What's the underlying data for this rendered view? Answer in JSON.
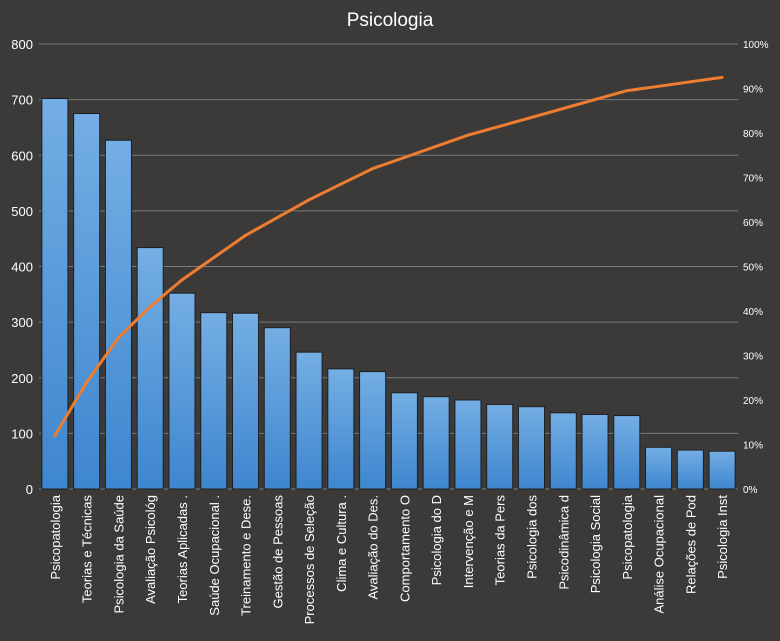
{
  "chart_data": {
    "type": "bar",
    "title": "Psicologia",
    "categories": [
      "Psicopatologia",
      "Teorias e Técnicas",
      "Psicologia da Saúde",
      "Avaliação Psicológ",
      "Teorias Aplicadas .",
      "Saúde Ocupacional  .",
      "Treinamento e Dese.",
      "Gestão de Pessoas",
      "Processos de Seleção",
      "Clima e Cultura  .",
      "Avaliação do Des.",
      "Comportamento  O",
      "Psicologia do D",
      "Intervenção  e M",
      "Teorias da Pers",
      "Psicologia dos",
      "Psicodinâmica d",
      "Psicologia Social",
      "Psicopatologia",
      "Análise Ocupacional",
      "Relações de Pod",
      "Psicologia Inst"
    ],
    "series": [
      {
        "type": "bar",
        "axis": "primary",
        "values": [
          702,
          675,
          627,
          434,
          352,
          317,
          316,
          290,
          246,
          216,
          211,
          173,
          166,
          160,
          152,
          148,
          137,
          134,
          132,
          75,
          70,
          68
        ]
      },
      {
        "type": "line",
        "axis": "secondary",
        "values": [
          12,
          24,
          34,
          41,
          47,
          52,
          57,
          61,
          65,
          68.5,
          72,
          74.5,
          77,
          79.5,
          81.5,
          83.5,
          85.5,
          87.5,
          89.5,
          90.5,
          91.5,
          92.5
        ]
      }
    ],
    "ylim": [
      0,
      800
    ],
    "yticks": [
      "0",
      "100",
      "200",
      "300",
      "400",
      "500",
      "600",
      "700",
      "800"
    ],
    "y2lim": [
      0,
      100
    ],
    "y2ticks": [
      "0%",
      "10%",
      "20%",
      "30%",
      "40%",
      "50%",
      "60%",
      "70%",
      "80%",
      "90%",
      "100%"
    ],
    "grid": true,
    "colors": {
      "bar": "#5b9bd5",
      "line": "#ed7d31",
      "background": "#3b3a39",
      "grid": "#7a7a7a",
      "text": "#ffffff"
    }
  }
}
